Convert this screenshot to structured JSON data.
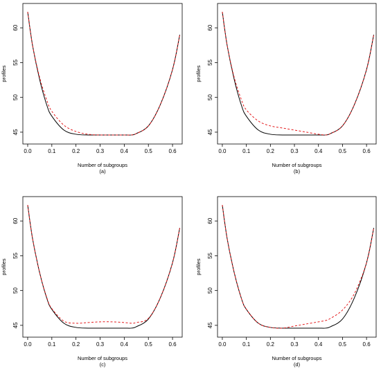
{
  "chart_data": [
    {
      "type": "line",
      "panel_label": "(a)",
      "xlabel": "Number of subgroups",
      "ylabel": "profiles",
      "xlim": [
        -0.02,
        0.64
      ],
      "ylim": [
        43.3,
        63.5
      ],
      "xticks": [
        "0.0",
        "0.1",
        "0.2",
        "0.3",
        "0.4",
        "0.5",
        "0.6"
      ],
      "yticks": [
        "45",
        "50",
        "55",
        "60"
      ],
      "series": [
        {
          "style": "solid",
          "color": "#000000",
          "x": [
            0.0,
            0.02,
            0.05,
            0.08,
            0.1,
            0.15,
            0.2,
            0.25,
            0.3,
            0.35,
            0.4,
            0.43,
            0.45,
            0.5,
            0.55,
            0.6,
            0.63
          ],
          "y": [
            62.3,
            57.5,
            52.5,
            48.8,
            47.3,
            45.3,
            44.7,
            44.6,
            44.6,
            44.6,
            44.6,
            44.6,
            44.8,
            45.9,
            49.0,
            54.0,
            59.0
          ]
        },
        {
          "style": "dashed",
          "color": "#e41a1c",
          "x": [
            0.0,
            0.02,
            0.05,
            0.08,
            0.1,
            0.15,
            0.2,
            0.25,
            0.3,
            0.35,
            0.4,
            0.43,
            0.45,
            0.5,
            0.55,
            0.6,
            0.63
          ],
          "y": [
            62.3,
            57.5,
            52.8,
            49.5,
            48.0,
            46.0,
            45.1,
            44.7,
            44.6,
            44.6,
            44.6,
            44.6,
            44.8,
            45.9,
            49.0,
            54.0,
            59.0
          ]
        }
      ]
    },
    {
      "type": "line",
      "panel_label": "(b)",
      "xlabel": "Number of subgroups",
      "ylabel": "profiles",
      "xlim": [
        -0.02,
        0.64
      ],
      "ylim": [
        43.3,
        63.5
      ],
      "xticks": [
        "0.0",
        "0.1",
        "0.2",
        "0.3",
        "0.4",
        "0.5",
        "0.6"
      ],
      "yticks": [
        "45",
        "50",
        "55",
        "60"
      ],
      "series": [
        {
          "style": "solid",
          "color": "#000000",
          "x": [
            0.0,
            0.02,
            0.05,
            0.08,
            0.1,
            0.15,
            0.2,
            0.25,
            0.3,
            0.35,
            0.4,
            0.43,
            0.45,
            0.5,
            0.55,
            0.6,
            0.63
          ],
          "y": [
            62.3,
            57.5,
            52.5,
            48.8,
            47.3,
            45.3,
            44.7,
            44.6,
            44.6,
            44.6,
            44.6,
            44.6,
            44.8,
            45.9,
            49.0,
            54.0,
            59.0
          ]
        },
        {
          "style": "dashed",
          "color": "#e41a1c",
          "x": [
            0.0,
            0.02,
            0.05,
            0.08,
            0.1,
            0.15,
            0.2,
            0.25,
            0.3,
            0.35,
            0.4,
            0.43,
            0.45,
            0.5,
            0.55,
            0.6,
            0.63
          ],
          "y": [
            62.3,
            57.5,
            52.8,
            49.6,
            48.2,
            46.6,
            45.9,
            45.6,
            45.3,
            45.0,
            44.7,
            44.6,
            44.8,
            45.9,
            49.0,
            54.0,
            59.0
          ]
        }
      ]
    },
    {
      "type": "line",
      "panel_label": "(c)",
      "xlabel": "Number of subgroups",
      "ylabel": "profiles",
      "xlim": [
        -0.02,
        0.64
      ],
      "ylim": [
        43.3,
        63.5
      ],
      "xticks": [
        "0.0",
        "0.1",
        "0.2",
        "0.3",
        "0.4",
        "0.5",
        "0.6"
      ],
      "yticks": [
        "45",
        "50",
        "55",
        "60"
      ],
      "series": [
        {
          "style": "solid",
          "color": "#000000",
          "x": [
            0.0,
            0.02,
            0.05,
            0.08,
            0.1,
            0.15,
            0.2,
            0.25,
            0.3,
            0.35,
            0.4,
            0.43,
            0.45,
            0.5,
            0.55,
            0.6,
            0.63
          ],
          "y": [
            62.3,
            57.5,
            52.5,
            48.8,
            47.3,
            45.3,
            44.7,
            44.6,
            44.6,
            44.6,
            44.6,
            44.6,
            44.8,
            45.9,
            49.0,
            54.0,
            59.0
          ]
        },
        {
          "style": "dashed",
          "color": "#e41a1c",
          "x": [
            0.0,
            0.02,
            0.05,
            0.08,
            0.1,
            0.15,
            0.2,
            0.25,
            0.3,
            0.35,
            0.4,
            0.43,
            0.45,
            0.5,
            0.55,
            0.6,
            0.63
          ],
          "y": [
            62.3,
            57.5,
            52.5,
            48.9,
            47.4,
            45.6,
            45.3,
            45.4,
            45.5,
            45.5,
            45.4,
            45.3,
            45.4,
            46.0,
            49.0,
            54.0,
            59.0
          ]
        }
      ]
    },
    {
      "type": "line",
      "panel_label": "(d)",
      "xlabel": "Number of subgroups",
      "ylabel": "profiles",
      "xlim": [
        -0.02,
        0.64
      ],
      "ylim": [
        43.3,
        63.5
      ],
      "xticks": [
        "0.0",
        "0.1",
        "0.2",
        "0.3",
        "0.4",
        "0.5",
        "0.6"
      ],
      "yticks": [
        "45",
        "50",
        "55",
        "60"
      ],
      "series": [
        {
          "style": "solid",
          "color": "#000000",
          "x": [
            0.0,
            0.02,
            0.05,
            0.08,
            0.1,
            0.15,
            0.2,
            0.25,
            0.3,
            0.35,
            0.4,
            0.43,
            0.45,
            0.5,
            0.55,
            0.6,
            0.63
          ],
          "y": [
            62.3,
            57.5,
            52.5,
            48.8,
            47.3,
            45.3,
            44.7,
            44.6,
            44.6,
            44.6,
            44.6,
            44.6,
            44.8,
            45.9,
            49.0,
            54.0,
            59.0
          ]
        },
        {
          "style": "dashed",
          "color": "#e41a1c",
          "x": [
            0.0,
            0.02,
            0.05,
            0.08,
            0.1,
            0.15,
            0.2,
            0.25,
            0.3,
            0.35,
            0.4,
            0.43,
            0.45,
            0.5,
            0.55,
            0.6,
            0.63
          ],
          "y": [
            62.3,
            57.5,
            52.5,
            48.8,
            47.3,
            45.3,
            44.7,
            44.6,
            44.9,
            45.2,
            45.5,
            45.7,
            46.0,
            47.2,
            49.6,
            54.0,
            59.0
          ]
        }
      ]
    }
  ]
}
